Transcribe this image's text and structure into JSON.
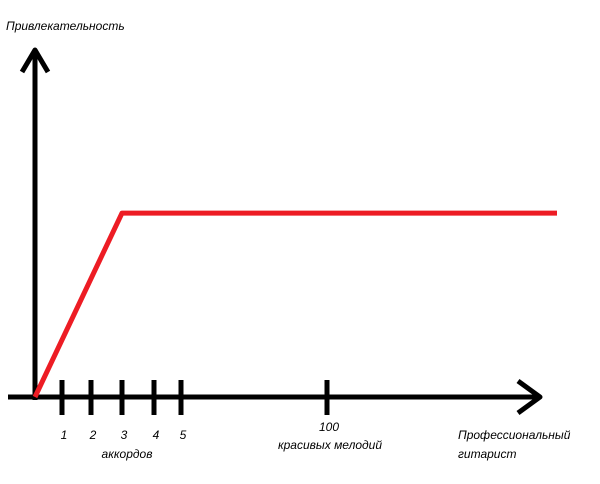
{
  "chart_data": {
    "type": "line",
    "ylabel": "Привлекательность",
    "xticks": [
      1,
      2,
      3,
      4,
      5,
      100
    ],
    "annotations": [
      "аккордов",
      "красивых мелодий",
      "Профессиональный",
      "гитарист"
    ],
    "xlim": [
      0,
      150
    ],
    "ylim": [
      0,
      100
    ],
    "x": [
      0,
      3,
      150
    ],
    "values": [
      0,
      53,
      53
    ],
    "color": "#ed1c24"
  }
}
